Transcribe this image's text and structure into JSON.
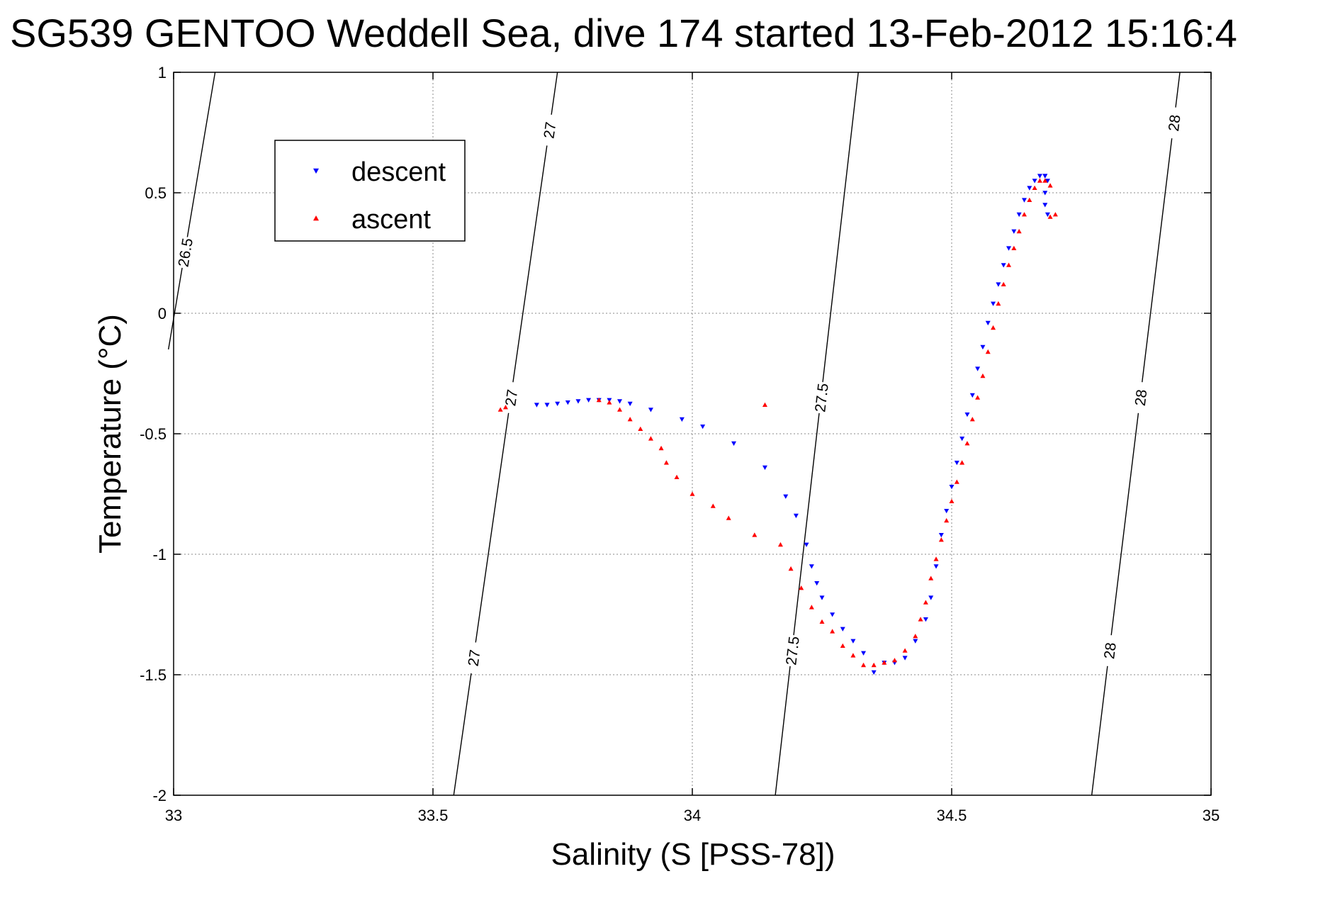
{
  "chart_data": {
    "type": "scatter",
    "title": "SG539 GENTOO Weddell Sea, dive 174 started 13-Feb-2012 15:16:4",
    "xlabel": "Salinity (S [PSS-78])",
    "ylabel": "Temperature (°C)",
    "xlim": [
      33,
      35
    ],
    "ylim": [
      -2,
      1
    ],
    "xticks": [
      33,
      33.5,
      34,
      34.5,
      35
    ],
    "yticks": [
      -2,
      -1.5,
      -1,
      -0.5,
      0,
      0.5,
      1
    ],
    "xtick_labels": [
      "33",
      "33.5",
      "34",
      "34.5",
      "35"
    ],
    "ytick_labels": [
      "-2",
      "-1.5",
      "-1",
      "-0.5",
      "0",
      "0.5",
      "1"
    ],
    "grid": true,
    "legend": {
      "position": "top-left",
      "entries": [
        "descent",
        "ascent"
      ]
    },
    "colors": {
      "descent": "#0000ff",
      "ascent": "#ff0000",
      "axes": "#000000",
      "grid": "#888888"
    },
    "series": [
      {
        "name": "descent",
        "marker": "triangle-down",
        "color": "#0000ff",
        "x": [
          33.7,
          33.72,
          33.74,
          33.76,
          33.78,
          33.8,
          33.82,
          33.84,
          33.86,
          33.88,
          33.92,
          33.98,
          34.02,
          34.08,
          34.14,
          34.18,
          34.2,
          34.22,
          34.23,
          34.24,
          34.25,
          34.27,
          34.29,
          34.31,
          34.33,
          34.35,
          34.37,
          34.39,
          34.41,
          34.43,
          34.45,
          34.46,
          34.47,
          34.48,
          34.49,
          34.5,
          34.51,
          34.52,
          34.53,
          34.54,
          34.55,
          34.56,
          34.57,
          34.58,
          34.59,
          34.6,
          34.61,
          34.62,
          34.63,
          34.64,
          34.65,
          34.66,
          34.67,
          34.68,
          34.68,
          34.68,
          34.685,
          34.685,
          34.68
        ],
        "y": [
          -0.38,
          -0.38,
          -0.375,
          -0.37,
          -0.365,
          -0.36,
          -0.36,
          -0.36,
          -0.365,
          -0.375,
          -0.4,
          -0.44,
          -0.47,
          -0.54,
          -0.64,
          -0.76,
          -0.84,
          -0.96,
          -1.05,
          -1.12,
          -1.18,
          -1.25,
          -1.31,
          -1.36,
          -1.41,
          -1.49,
          -1.45,
          -1.45,
          -1.43,
          -1.36,
          -1.27,
          -1.18,
          -1.05,
          -0.92,
          -0.82,
          -0.72,
          -0.62,
          -0.52,
          -0.42,
          -0.34,
          -0.23,
          -0.14,
          -0.04,
          0.04,
          0.12,
          0.2,
          0.27,
          0.34,
          0.41,
          0.47,
          0.52,
          0.55,
          0.57,
          0.57,
          0.5,
          0.45,
          0.41,
          0.55,
          0.57
        ]
      },
      {
        "name": "ascent",
        "marker": "triangle-up",
        "color": "#ff0000",
        "x": [
          33.63,
          33.64,
          33.82,
          33.84,
          33.86,
          33.88,
          33.9,
          33.92,
          33.94,
          33.95,
          33.97,
          34.0,
          34.04,
          34.07,
          34.12,
          34.14,
          34.17,
          34.19,
          34.21,
          34.23,
          34.25,
          34.27,
          34.29,
          34.31,
          34.33,
          34.35,
          34.37,
          34.39,
          34.41,
          34.43,
          34.44,
          34.45,
          34.46,
          34.47,
          34.48,
          34.49,
          34.5,
          34.51,
          34.52,
          34.53,
          34.54,
          34.55,
          34.56,
          34.57,
          34.58,
          34.59,
          34.6,
          34.61,
          34.62,
          34.63,
          34.64,
          34.65,
          34.66,
          34.67,
          34.68,
          34.69,
          34.7,
          34.69
        ],
        "y": [
          -0.4,
          -0.39,
          -0.36,
          -0.37,
          -0.4,
          -0.44,
          -0.48,
          -0.52,
          -0.56,
          -0.62,
          -0.68,
          -0.75,
          -0.8,
          -0.85,
          -0.92,
          -0.38,
          -0.96,
          -1.06,
          -1.14,
          -1.22,
          -1.28,
          -1.32,
          -1.38,
          -1.42,
          -1.46,
          -1.46,
          -1.45,
          -1.44,
          -1.4,
          -1.34,
          -1.27,
          -1.2,
          -1.1,
          -1.02,
          -0.94,
          -0.86,
          -0.78,
          -0.7,
          -0.62,
          -0.54,
          -0.44,
          -0.35,
          -0.26,
          -0.16,
          -0.06,
          0.04,
          0.12,
          0.2,
          0.27,
          0.34,
          0.41,
          0.47,
          0.52,
          0.55,
          0.55,
          0.4,
          0.41,
          0.53
        ]
      }
    ],
    "contours": [
      {
        "label": "26.5",
        "x": [
          32.99,
          33.08
        ],
        "y": [
          -0.15,
          1.0
        ],
        "label_at": 0.35
      },
      {
        "label": "27",
        "x": [
          33.54,
          33.74
        ],
        "y": [
          -2.0,
          1.0
        ],
        "label_at": 0.19,
        "more_labels_at": [
          0.55,
          0.92
        ]
      },
      {
        "label": "27.5",
        "x": [
          34.16,
          34.32
        ],
        "y": [
          -2.0,
          1.0
        ],
        "label_at": 0.2,
        "more_labels_at": [
          0.55
        ]
      },
      {
        "label": "28",
        "x": [
          34.77,
          34.94
        ],
        "y": [
          -2.0,
          1.0
        ],
        "label_at": 0.2,
        "more_labels_at": [
          0.55,
          0.93
        ]
      }
    ]
  }
}
